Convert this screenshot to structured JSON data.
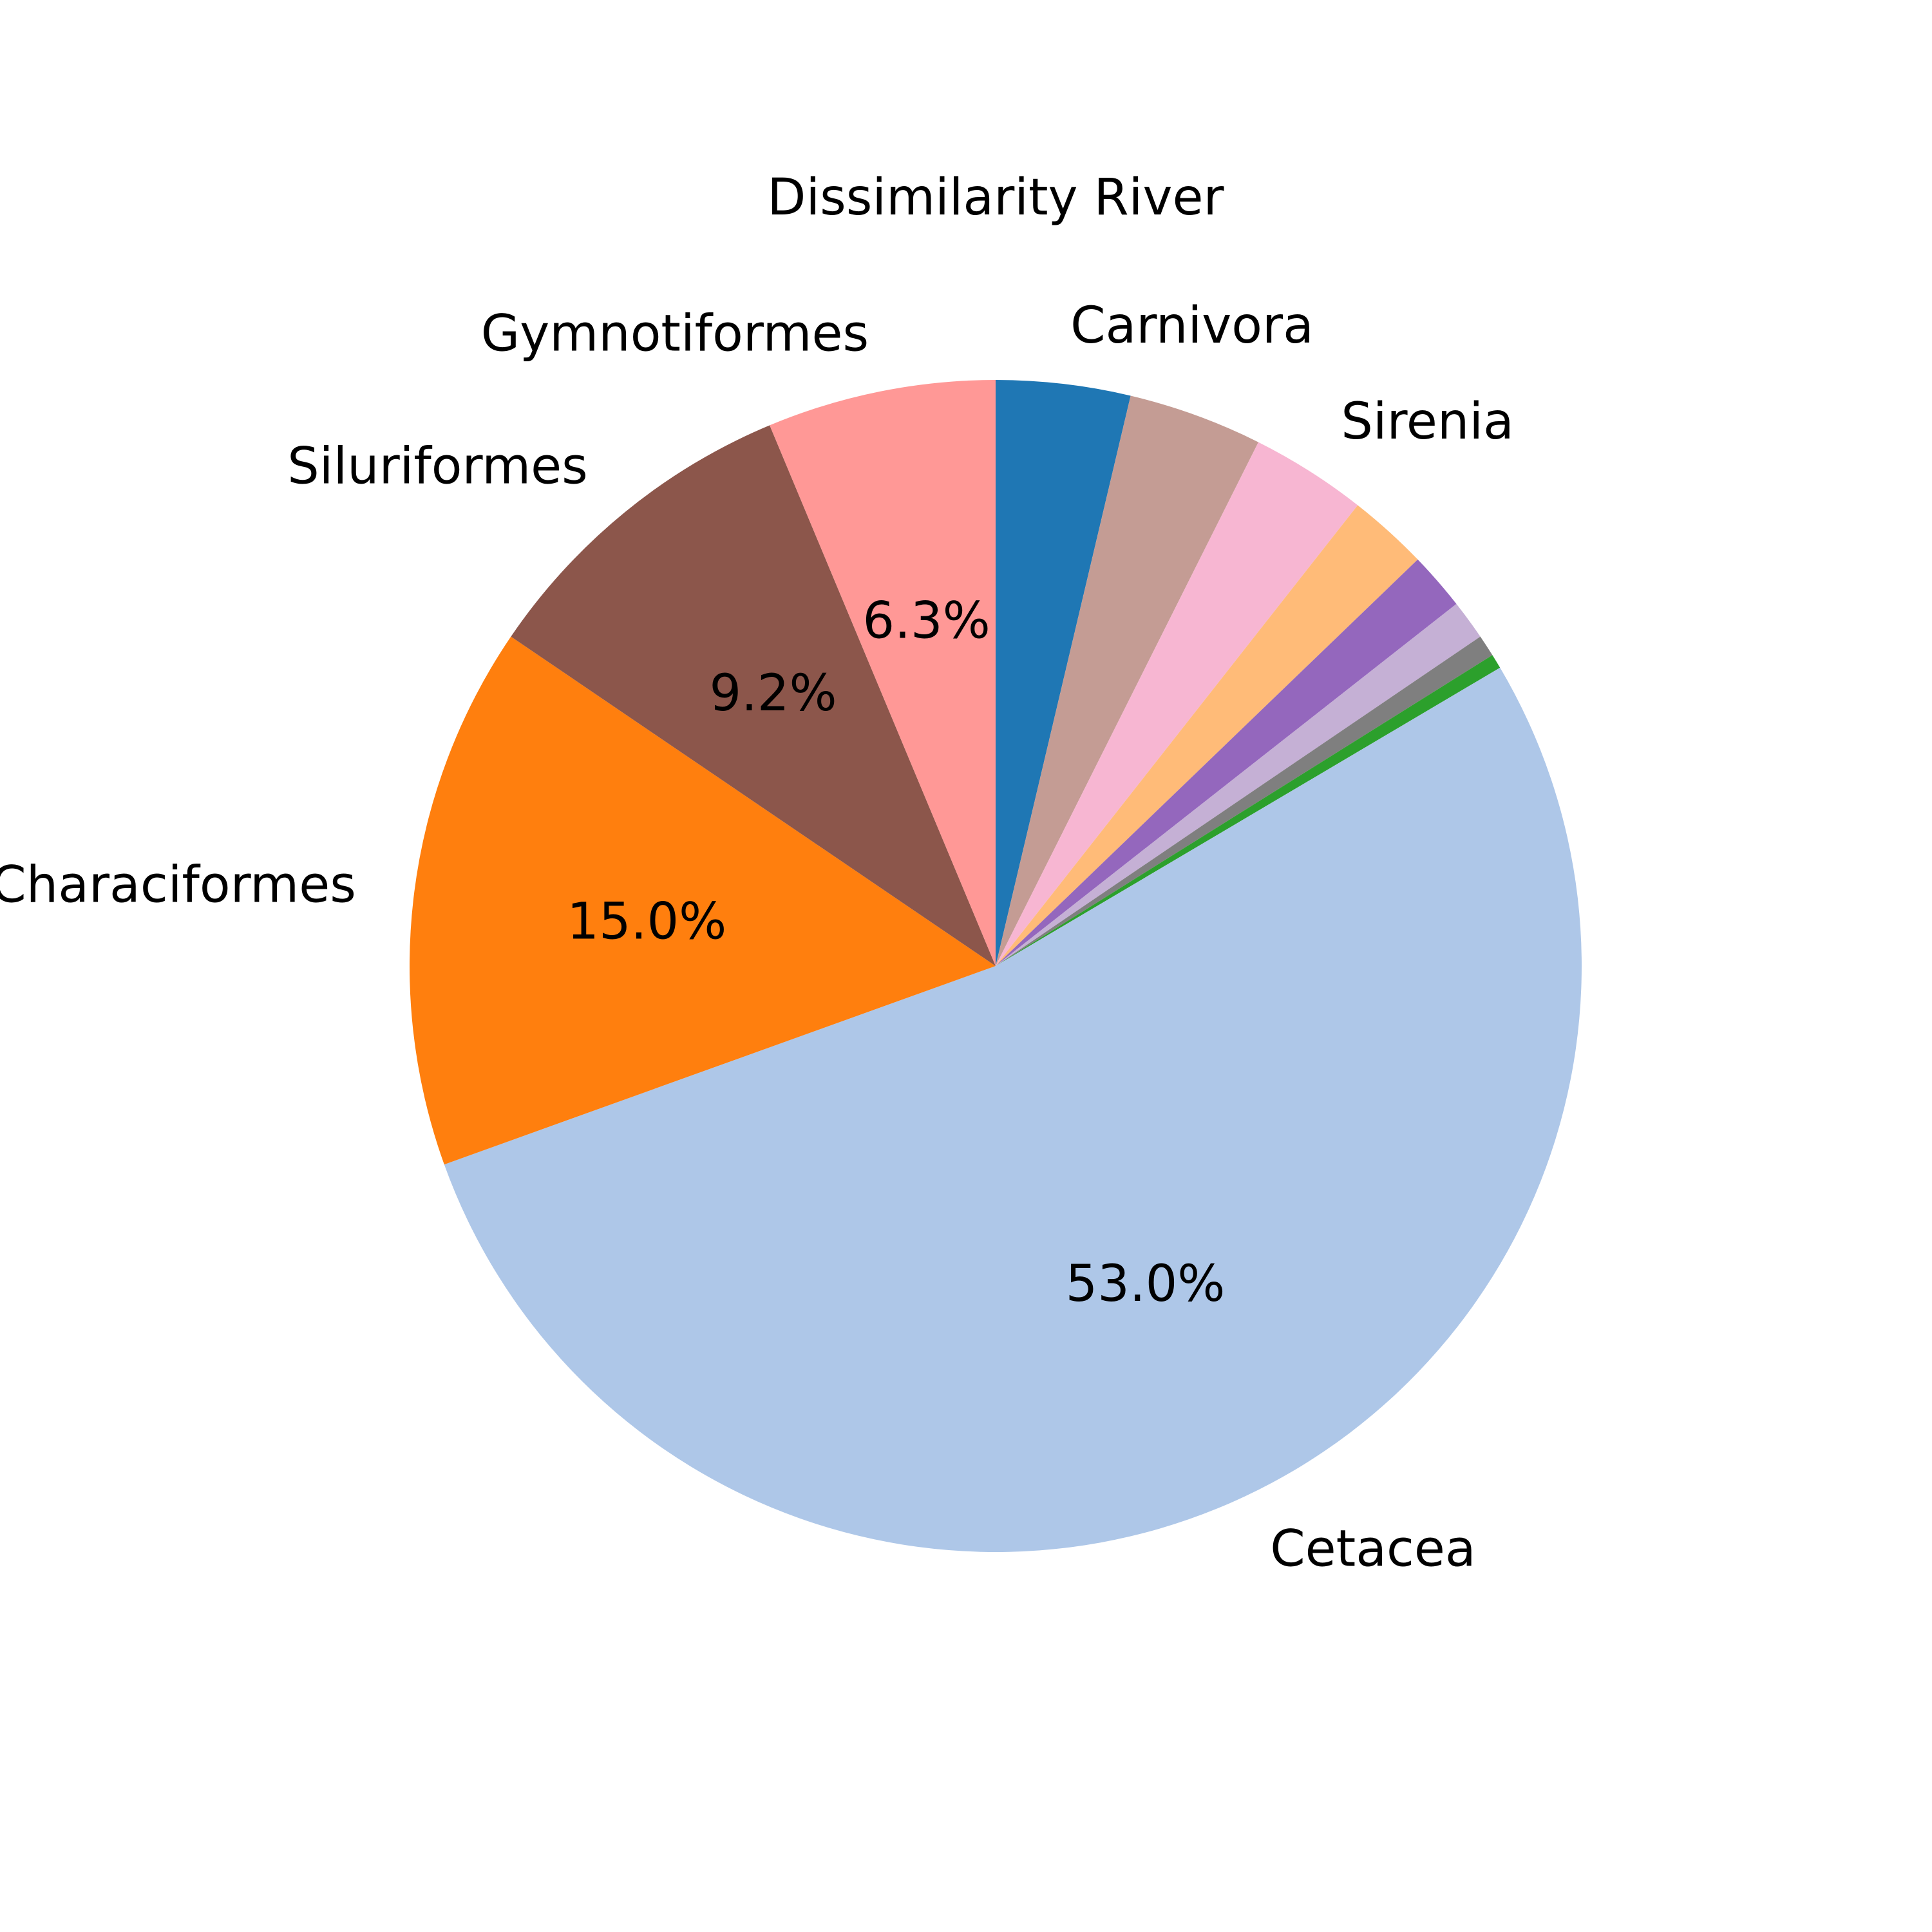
{
  "chart_data": {
    "type": "pie",
    "title": "Dissimilarity River",
    "slices": [
      {
        "label": "Carnivora",
        "value": 3.7,
        "color": "#1f77b4",
        "show_label": true,
        "pct_text": ""
      },
      {
        "label": "",
        "value": 3.7,
        "color": "#c49c94",
        "show_label": false,
        "pct_text": ""
      },
      {
        "label": "Sirenia",
        "value": 3.2,
        "color": "#f7b6d2",
        "show_label": true,
        "pct_text": ""
      },
      {
        "label": "",
        "value": 2.2,
        "color": "#ffbb78",
        "show_label": false,
        "pct_text": ""
      },
      {
        "label": "",
        "value": 1.6,
        "color": "#9467bd",
        "show_label": false,
        "pct_text": ""
      },
      {
        "label": "",
        "value": 1.1,
        "color": "#c5b0d5",
        "show_label": false,
        "pct_text": ""
      },
      {
        "label": "",
        "value": 0.6,
        "color": "#7f7f7f",
        "show_label": false,
        "pct_text": ""
      },
      {
        "label": "",
        "value": 0.4,
        "color": "#2ca02c",
        "show_label": false,
        "pct_text": ""
      },
      {
        "label": "Cetacea",
        "value": 53.0,
        "color": "#aec7e8",
        "show_label": true,
        "pct_text": "53.0%"
      },
      {
        "label": "Characiformes",
        "value": 15.0,
        "color": "#ff7f0e",
        "show_label": true,
        "pct_text": "15.0%"
      },
      {
        "label": "Siluriformes",
        "value": 9.2,
        "color": "#8c564b",
        "show_label": true,
        "pct_text": "9.2%"
      },
      {
        "label": "Gymnotiformes",
        "value": 6.3,
        "color": "#ff9896",
        "show_label": true,
        "pct_text": "6.3%"
      }
    ],
    "start_angle_deg": 90,
    "direction": "clockwise",
    "legend": "none"
  }
}
